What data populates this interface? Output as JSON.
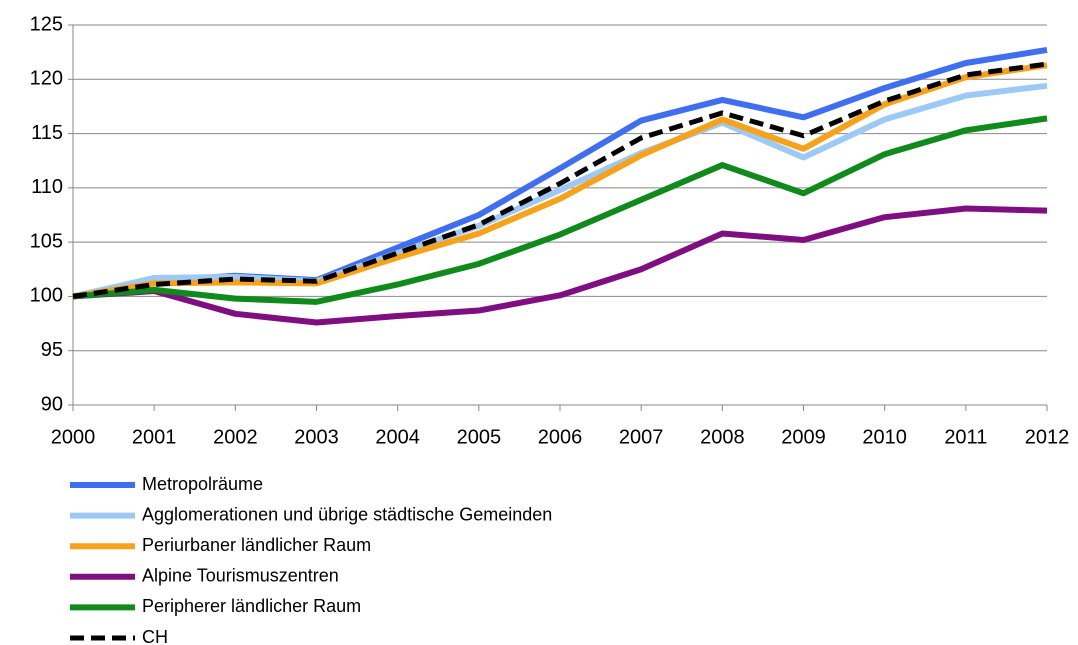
{
  "chart_data": {
    "type": "line",
    "x": [
      2000,
      2001,
      2002,
      2003,
      2004,
      2005,
      2006,
      2007,
      2008,
      2009,
      2010,
      2011,
      2012
    ],
    "xlim": [
      2000,
      2012
    ],
    "xticks": [
      2000,
      2001,
      2002,
      2003,
      2004,
      2005,
      2006,
      2007,
      2008,
      2009,
      2010,
      2011,
      2012
    ],
    "ylim": [
      90,
      125
    ],
    "yticks": [
      90,
      95,
      100,
      105,
      110,
      115,
      120,
      125
    ],
    "grid": true,
    "legend": "bottom",
    "series": [
      {
        "name": "Metropolräume",
        "color": "#3f6ff0",
        "values": [
          100,
          101.4,
          101.9,
          101.5,
          104.5,
          107.5,
          111.8,
          116.2,
          118.1,
          116.5,
          119.2,
          121.5,
          122.7
        ]
      },
      {
        "name": "Agglomerationen und übrige städtische Gemeinden",
        "color": "#9dc9f7",
        "values": [
          100,
          101.7,
          101.8,
          101.4,
          104,
          106.5,
          109.8,
          113.2,
          116,
          112.8,
          116.3,
          118.5,
          119.4
        ]
      },
      {
        "name": "Periurbaner ländlicher Raum",
        "color": "#f7a21b",
        "values": [
          100,
          101.2,
          101.3,
          101.2,
          103.6,
          105.8,
          109,
          113,
          116.3,
          113.6,
          117.7,
          120.2,
          121.3
        ]
      },
      {
        "name": "Alpine Tourismuszentren",
        "color": "#7f0f80",
        "values": [
          100,
          100.5,
          98.4,
          97.6,
          98.2,
          98.7,
          100.1,
          102.5,
          105.8,
          105.2,
          107.3,
          108.1,
          107.9
        ]
      },
      {
        "name": "Peripherer ländlicher Raum",
        "color": "#0f8a1b",
        "values": [
          100,
          100.6,
          99.8,
          99.5,
          101.1,
          103,
          105.7,
          108.9,
          112.1,
          109.5,
          113.1,
          115.3,
          116.4
        ]
      },
      {
        "name": "CH",
        "color": "#000000",
        "dashed": true,
        "values": [
          100,
          101.1,
          101.6,
          101.4,
          104,
          106.6,
          110.4,
          114.6,
          116.9,
          114.8,
          118,
          120.4,
          121.4
        ]
      }
    ]
  }
}
